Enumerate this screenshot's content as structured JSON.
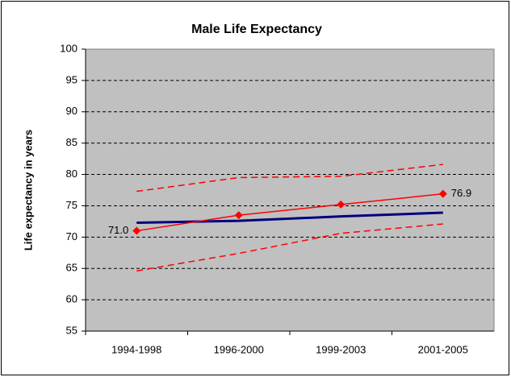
{
  "chart_data": {
    "type": "line",
    "title": "Male Life Expectancy",
    "y_label": "Life expectancy in years",
    "categories": [
      "1994-1998",
      "1996-2000",
      "1999-2003",
      "2001-2005"
    ],
    "series": [
      {
        "color": "#ff0000",
        "style": "dashed",
        "linewidth": 1.5,
        "values": [
          77.3,
          79.5,
          79.7,
          81.6
        ]
      },
      {
        "color": "#ff0000",
        "style": "dashed",
        "linewidth": 1.5,
        "values": [
          64.6,
          67.4,
          70.6,
          72.1
        ]
      },
      {
        "color": "#000080",
        "style": "solid",
        "linewidth": 3,
        "values": [
          72.3,
          72.6,
          73.3,
          73.9
        ]
      },
      {
        "color": "#ff0000",
        "style": "solid",
        "linewidth": 1.5,
        "marker": "diamond",
        "values": [
          71.0,
          73.5,
          75.2,
          76.9
        ],
        "value_labels": [
          "71.0",
          null,
          null,
          "76.9"
        ]
      }
    ],
    "ylim": [
      55,
      100
    ],
    "yticks": [
      55,
      60,
      65,
      70,
      75,
      80,
      85,
      90,
      95,
      100
    ],
    "grid": true,
    "plot_background": "#c0c0c0"
  }
}
